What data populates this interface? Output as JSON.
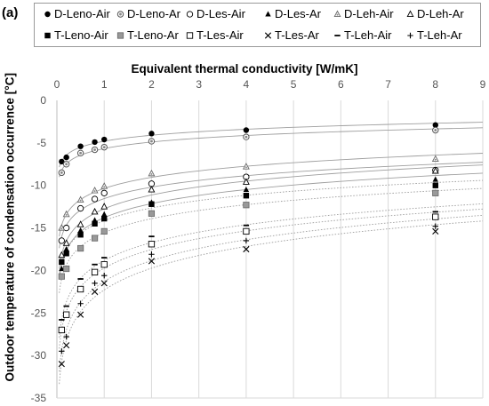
{
  "panel_label": "(a)",
  "chart_data": {
    "type": "scatter",
    "title": "",
    "xlabel": "Equivalent thermal conductivity [W/mK]",
    "ylabel": "Outdoor temperature of condensation occurrence [°C]",
    "x_axis_position": "top",
    "xlim": [
      0,
      9
    ],
    "ylim": [
      -35,
      0
    ],
    "xticks": [
      "0",
      "1",
      "2",
      "3",
      "4",
      "5",
      "6",
      "7",
      "8",
      "9"
    ],
    "yticks": [
      "0",
      "-5",
      "-10",
      "-15",
      "-20",
      "-25",
      "-30",
      "-35"
    ],
    "grid": {
      "vertical": true,
      "horizontal": false
    },
    "legend": {
      "position": "top",
      "columns": 6
    },
    "x": [
      0.1,
      0.2,
      0.5,
      0.8,
      1.0,
      2.0,
      4.0,
      8.0
    ],
    "trendlines": "logarithmic (solid grey for D-*, dotted grey for T-*)",
    "series": [
      {
        "name": "D-Leno-Air",
        "marker": "filled-circle",
        "group": "D",
        "values": [
          -7.2,
          -6.7,
          -5.4,
          -4.9,
          -4.6,
          -3.9,
          -3.5,
          -2.9
        ]
      },
      {
        "name": "D-Leno-Ar",
        "marker": "dotted-circle",
        "group": "D",
        "values": [
          -8.5,
          -7.5,
          -6.2,
          -5.8,
          -5.5,
          -4.8,
          -4.3,
          -3.5
        ]
      },
      {
        "name": "D-Les-Air",
        "marker": "open-circle",
        "group": "D",
        "values": [
          -16.5,
          -15.0,
          -12.7,
          -11.6,
          -10.9,
          -9.8,
          -9.0,
          -8.2
        ]
      },
      {
        "name": "D-Les-Ar",
        "marker": "filled-triangle",
        "group": "D",
        "values": [
          -19.8,
          -17.5,
          -15.3,
          -14.1,
          -13.4,
          -12.0,
          -10.5,
          -9.3
        ]
      },
      {
        "name": "D-Leh-Air",
        "marker": "dotted-triangle",
        "group": "D",
        "values": [
          -15.0,
          -13.4,
          -11.7,
          -10.6,
          -10.1,
          -8.6,
          -7.8,
          -6.9
        ]
      },
      {
        "name": "D-Leh-Ar",
        "marker": "open-triangle",
        "group": "D",
        "values": [
          -18.2,
          -16.8,
          -14.6,
          -13.1,
          -12.5,
          -10.5,
          -9.6,
          -8.3
        ]
      },
      {
        "name": "T-Leno-Air",
        "marker": "filled-square",
        "group": "T",
        "values": [
          -19.0,
          -18.0,
          -15.8,
          -14.5,
          -13.9,
          -12.2,
          -11.2,
          -10.0
        ]
      },
      {
        "name": "T-Leno-Ar",
        "marker": "dotted-square",
        "group": "T",
        "values": [
          -20.7,
          -19.8,
          -17.4,
          -16.2,
          -15.4,
          -13.3,
          -12.3,
          -10.9
        ]
      },
      {
        "name": "T-Les-Air",
        "marker": "open-square",
        "group": "T",
        "values": [
          -27.0,
          -25.2,
          -22.2,
          -20.2,
          -19.3,
          -16.9,
          -15.4,
          -13.7
        ]
      },
      {
        "name": "T-Les-Ar",
        "marker": "cross",
        "group": "T",
        "values": [
          -31.0,
          -28.8,
          -25.2,
          -22.5,
          -21.5,
          -18.9,
          -17.5,
          -15.4
        ]
      },
      {
        "name": "T-Leh-Air",
        "marker": "dash",
        "group": "T",
        "values": [
          -25.8,
          -24.2,
          -21.0,
          -19.3,
          -18.5,
          -16.0,
          -14.7,
          -13.1
        ]
      },
      {
        "name": "T-Leh-Ar",
        "marker": "plus",
        "group": "T",
        "values": [
          -29.5,
          -27.8,
          -23.9,
          -21.5,
          -20.6,
          -18.1,
          -16.5,
          -14.8
        ]
      }
    ]
  }
}
